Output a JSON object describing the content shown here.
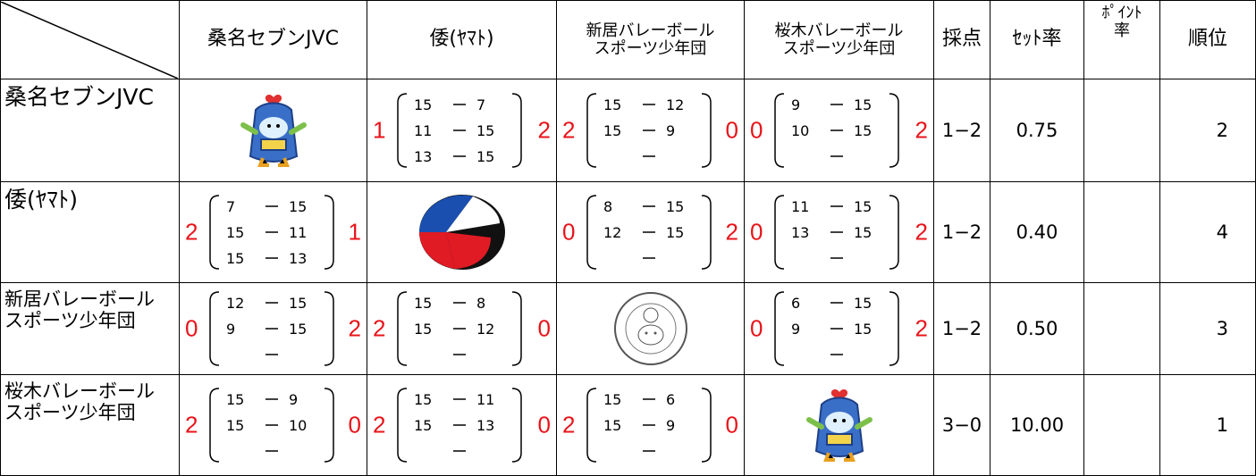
{
  "header": {
    "teams": [
      [
        "桑名セブンJVC"
      ],
      [
        "倭(ﾔﾏﾄ)"
      ],
      [
        "新居バレーボール",
        "スポーツ少年団"
      ],
      [
        "桜木バレーボール",
        "スポーツ少年団"
      ]
    ],
    "score": "採点",
    "set_rate": "ｾｯﾄ率",
    "point_rate": [
      "ﾎﾟｲﾝﾄ",
      "率"
    ],
    "rank": "順位"
  },
  "rows": [
    {
      "team": "桑名セブンJVC",
      "cells": [
        null,
        {
          "left": 1,
          "sets": [
            [
              15,
              7
            ],
            [
              11,
              15
            ],
            [
              13,
              15
            ]
          ],
          "right": 2
        },
        {
          "left": 2,
          "sets": [
            [
              15,
              12
            ],
            [
              15,
              9
            ]
          ],
          "right": 0
        },
        {
          "left": 0,
          "sets": [
            [
              9,
              15
            ],
            [
              10,
              15
            ]
          ],
          "right": 2
        }
      ],
      "score": "1−2",
      "set_rate": "0.75",
      "rank": 2
    },
    {
      "team": "倭(ﾔﾏﾄ)",
      "cells": [
        {
          "left": 2,
          "sets": [
            [
              7,
              15
            ],
            [
              15,
              11
            ],
            [
              15,
              13
            ]
          ],
          "right": 1
        },
        null,
        {
          "left": 0,
          "sets": [
            [
              8,
              15
            ],
            [
              12,
              15
            ]
          ],
          "right": 2
        },
        {
          "left": 0,
          "sets": [
            [
              11,
              15
            ],
            [
              13,
              15
            ]
          ],
          "right": 2
        }
      ],
      "score": "1−2",
      "set_rate": "0.40",
      "rank": 4
    },
    {
      "team": [
        "新居バレーボール",
        "スポーツ少年団"
      ],
      "cells": [
        {
          "left": 0,
          "sets": [
            [
              12,
              15
            ],
            [
              9,
              15
            ]
          ],
          "right": 2
        },
        {
          "left": 2,
          "sets": [
            [
              15,
              8
            ],
            [
              15,
              12
            ]
          ],
          "right": 0
        },
        null,
        {
          "left": 0,
          "sets": [
            [
              6,
              15
            ],
            [
              9,
              15
            ]
          ],
          "right": 2
        }
      ],
      "score": "1−2",
      "set_rate": "0.50",
      "rank": 3
    },
    {
      "team": [
        "桜木バレーボール",
        "スポーツ少年団"
      ],
      "cells": [
        {
          "left": 2,
          "sets": [
            [
              15,
              9
            ],
            [
              15,
              10
            ]
          ],
          "right": 0
        },
        {
          "left": 2,
          "sets": [
            [
              15,
              11
            ],
            [
              15,
              13
            ]
          ],
          "right": 0
        },
        {
          "left": 2,
          "sets": [
            [
              15,
              6
            ],
            [
              15,
              9
            ]
          ],
          "right": 0
        },
        null
      ],
      "score": "3−0",
      "set_rate": "10.00",
      "rank": 1
    }
  ]
}
